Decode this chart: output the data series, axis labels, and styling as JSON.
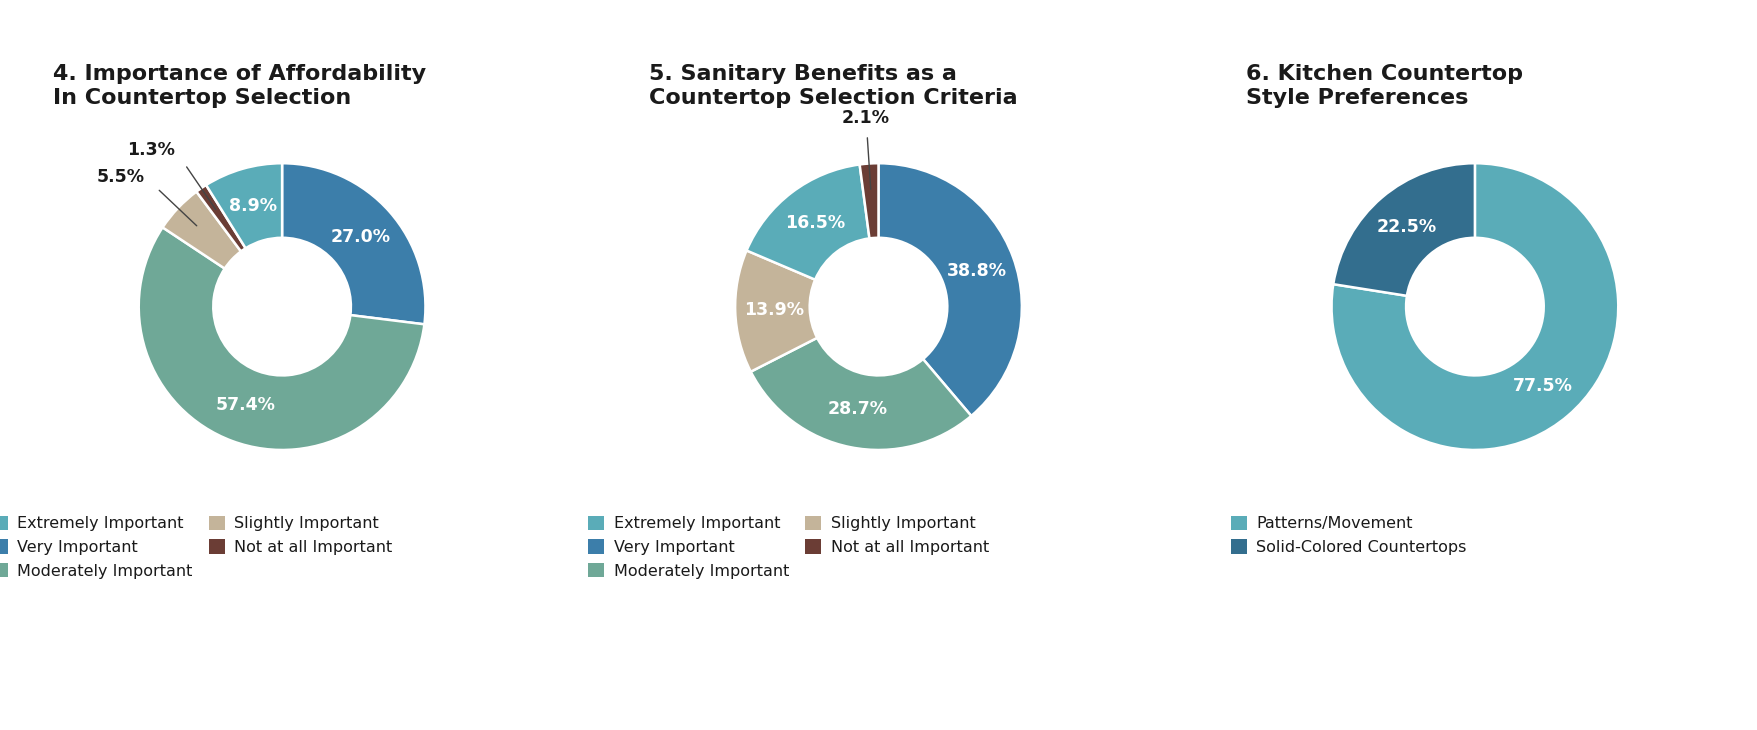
{
  "chart4": {
    "title": "4. Importance of Affordability\nIn Countertop Selection",
    "slices": [
      27.0,
      57.4,
      5.5,
      1.3,
      8.9
    ],
    "labels": [
      "27.0%",
      "57.4%",
      "5.5%",
      "1.3%",
      "8.9%"
    ],
    "colors": [
      "#3c7eaa",
      "#6fa897",
      "#c4b49a",
      "#6b3d35",
      "#5aacb8"
    ],
    "outside_indices": [
      2,
      3
    ],
    "startangle": 90
  },
  "chart5": {
    "title": "5. Sanitary Benefits as a\nCountertop Selection Criteria",
    "slices": [
      38.8,
      28.7,
      13.9,
      16.5,
      2.1
    ],
    "labels": [
      "38.8%",
      "28.7%",
      "13.9%",
      "16.5%",
      "2.1%"
    ],
    "colors": [
      "#3c7eaa",
      "#6fa897",
      "#c4b49a",
      "#5aacb8",
      "#6b3d35"
    ],
    "outside_indices": [
      4
    ],
    "startangle": 90
  },
  "chart6": {
    "title": "6. Kitchen Countertop\nStyle Preferences",
    "slices": [
      77.5,
      22.5
    ],
    "labels": [
      "77.5%",
      "22.5%"
    ],
    "colors": [
      "#5aacb8",
      "#336e8e"
    ],
    "outside_indices": [],
    "startangle": 90
  },
  "legend4": {
    "items": [
      [
        "#5aacb8",
        "Extremely Important"
      ],
      [
        "#3c7eaa",
        "Very Important"
      ],
      [
        "#6fa897",
        "Moderately Important"
      ],
      [
        "#c4b49a",
        "Slightly Important"
      ],
      [
        "#6b3d35",
        "Not at all Important"
      ]
    ],
    "ncol": 2
  },
  "legend5": {
    "items": [
      [
        "#5aacb8",
        "Extremely Important"
      ],
      [
        "#3c7eaa",
        "Very Important"
      ],
      [
        "#6fa897",
        "Moderately Important"
      ],
      [
        "#c4b49a",
        "Slightly Important"
      ],
      [
        "#6b3d35",
        "Not at all Important"
      ]
    ],
    "ncol": 2
  },
  "legend6": {
    "items": [
      [
        "#5aacb8",
        "Patterns/Movement"
      ],
      [
        "#336e8e",
        "Solid-Colored Countertops"
      ]
    ],
    "ncol": 1
  },
  "bg_color": "#ffffff",
  "text_color": "#1a1a1a",
  "label_fontsize": 12.5,
  "title_fontsize": 16,
  "legend_fontsize": 11.5
}
